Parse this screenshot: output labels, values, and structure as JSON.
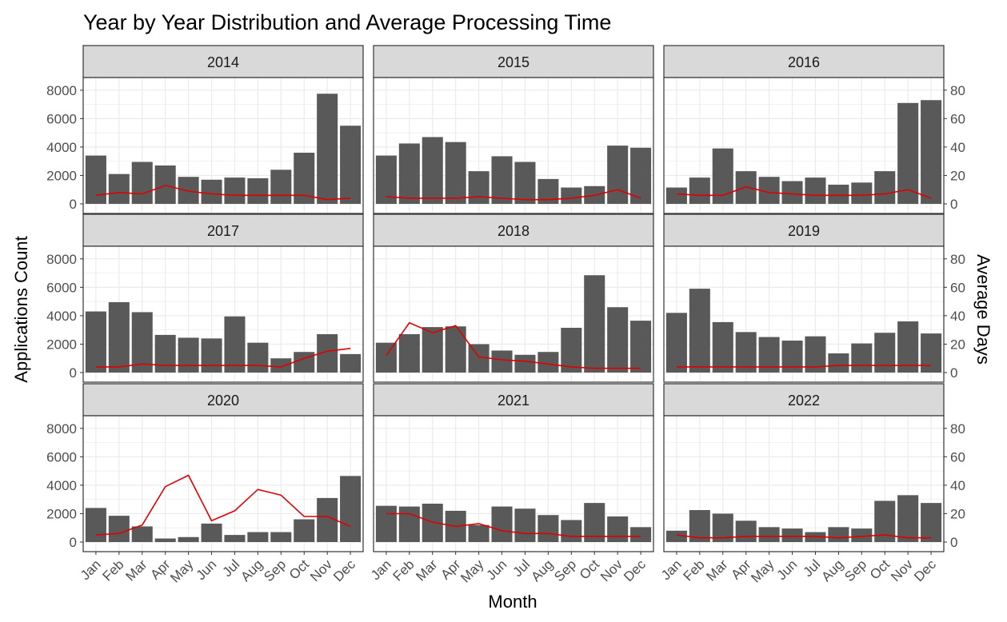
{
  "chart_data": {
    "type": "bar",
    "title": "Year by Year Distribution and Average Processing Time",
    "xlabel": "Month",
    "ylabel": "Applications Count",
    "y2label": "Average Days",
    "categories": [
      "Jan",
      "Feb",
      "Mar",
      "Apr",
      "May",
      "Jun",
      "Jul",
      "Aug",
      "Sep",
      "Oct",
      "Nov",
      "Dec"
    ],
    "ylim": [
      0,
      8000
    ],
    "y_ticks": [
      0,
      2000,
      4000,
      6000,
      8000
    ],
    "y2lim": [
      0,
      80
    ],
    "y2_ticks": [
      0,
      20,
      40,
      60,
      80
    ],
    "grid": true,
    "colors": {
      "bar": "#595959",
      "line": "#e00000",
      "strip": "#d9d9d9",
      "grid": "#ebebeb",
      "border": "#333333"
    },
    "panels": [
      {
        "year": "2014",
        "counts": [
          3400,
          2100,
          2950,
          2700,
          1900,
          1700,
          1850,
          1800,
          2400,
          3600,
          7750,
          5500
        ],
        "avg_days": [
          6,
          8,
          7,
          13,
          9,
          7,
          6,
          6,
          6,
          6,
          3,
          4
        ]
      },
      {
        "year": "2015",
        "counts": [
          3400,
          4250,
          4700,
          4350,
          2300,
          3350,
          2950,
          1750,
          1150,
          1250,
          4100,
          3950
        ],
        "avg_days": [
          5,
          4,
          4,
          4,
          5,
          4,
          3,
          3,
          4,
          6,
          10,
          4
        ]
      },
      {
        "year": "2016",
        "counts": [
          1150,
          1850,
          3900,
          2300,
          1900,
          1600,
          1850,
          1350,
          1500,
          2300,
          7100,
          7300
        ],
        "avg_days": [
          7,
          6,
          6,
          12,
          8,
          7,
          6,
          6,
          6,
          7,
          10,
          4
        ]
      },
      {
        "year": "2017",
        "counts": [
          4300,
          4950,
          4250,
          2650,
          2450,
          2400,
          3950,
          2100,
          1000,
          1450,
          2700,
          1300
        ],
        "avg_days": [
          4,
          4,
          6,
          5,
          5,
          5,
          5,
          5,
          4,
          10,
          15,
          17
        ]
      },
      {
        "year": "2018",
        "counts": [
          2100,
          2700,
          3200,
          3250,
          2000,
          1550,
          1250,
          1450,
          3150,
          6850,
          4600,
          3650
        ],
        "avg_days": [
          12,
          35,
          28,
          33,
          11,
          9,
          8,
          6,
          4,
          3,
          3,
          3
        ]
      },
      {
        "year": "2019",
        "counts": [
          4200,
          5900,
          3550,
          2850,
          2500,
          2250,
          2550,
          1350,
          2050,
          2800,
          3600,
          2750
        ],
        "avg_days": [
          4,
          4,
          4,
          4,
          4,
          4,
          4,
          5,
          5,
          5,
          5,
          5
        ]
      },
      {
        "year": "2020",
        "counts": [
          2400,
          1850,
          1100,
          250,
          350,
          1300,
          500,
          700,
          700,
          1600,
          3100,
          4650
        ],
        "avg_days": [
          5,
          6,
          12,
          39,
          47,
          15,
          22,
          37,
          33,
          18,
          18,
          11
        ]
      },
      {
        "year": "2021",
        "counts": [
          2550,
          2500,
          2700,
          2200,
          1200,
          2500,
          2350,
          1900,
          1550,
          2750,
          1800,
          1050
        ],
        "avg_days": [
          20,
          20,
          14,
          11,
          13,
          8,
          6,
          6,
          4,
          4,
          4,
          4
        ]
      },
      {
        "year": "2022",
        "counts": [
          800,
          2250,
          2000,
          1500,
          1050,
          950,
          700,
          1050,
          950,
          2900,
          3300,
          2750
        ],
        "avg_days": [
          5,
          3,
          3,
          4,
          4,
          4,
          4,
          3,
          4,
          5,
          3,
          3
        ]
      }
    ]
  }
}
